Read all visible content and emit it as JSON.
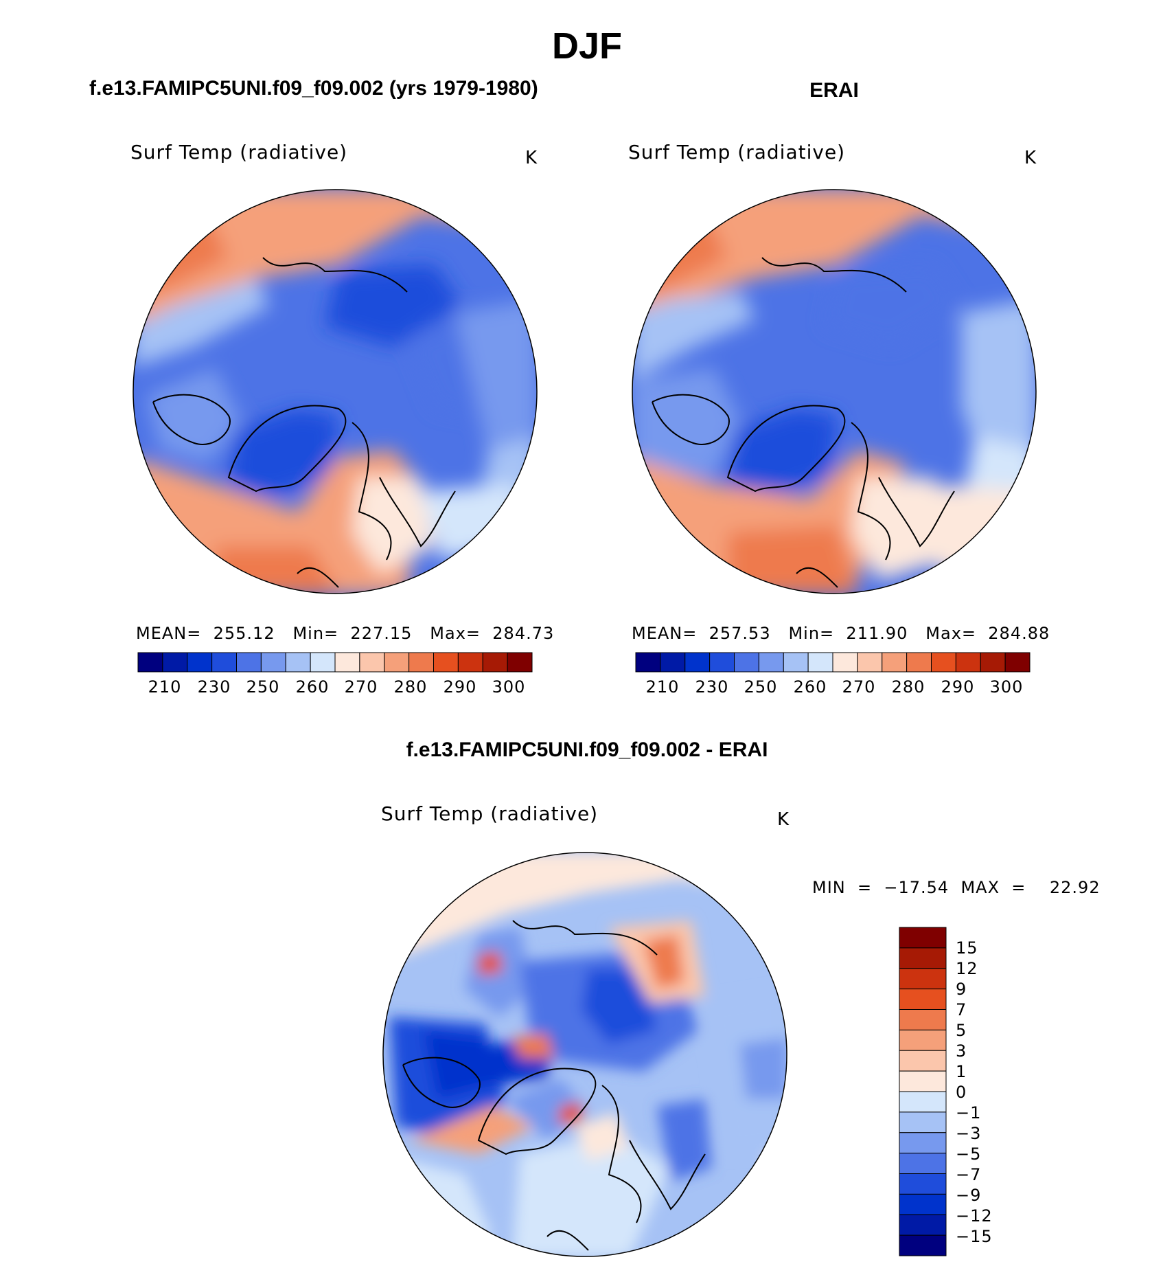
{
  "figure": {
    "title": "DJF",
    "colors": {
      "abs_scale": [
        "#00007f",
        "#001aa6",
        "#0033cc",
        "#1f4ddb",
        "#4d73e6",
        "#7799ee",
        "#a6c2f5",
        "#d4e6fb",
        "#fde8dc",
        "#fbc6ac",
        "#f5a07a",
        "#ee7a4d",
        "#e6501f",
        "#cc330f",
        "#a61a05",
        "#7f0000"
      ],
      "diff_scale": [
        "#00007f",
        "#001aa6",
        "#0033cc",
        "#1f4ddb",
        "#4d73e6",
        "#7799ee",
        "#a6c2f5",
        "#d4e6fb",
        "#fde8dc",
        "#fbc6ac",
        "#f5a07a",
        "#ee7a4d",
        "#e6501f",
        "#cc330f",
        "#a61a05",
        "#7f0000"
      ]
    }
  },
  "panels": [
    {
      "title": "f.e13.FAMIPC5UNI.f09_f09.002 (yrs 1979-1980)",
      "variable": "Surf  Temp  (radiative)",
      "units": "K",
      "stats": "MEAN=  255.12   Min=  227.15   Max=  284.73",
      "colorbar_ticks": [
        "210",
        "230",
        "250",
        "260",
        "270",
        "280",
        "290",
        "300"
      ]
    },
    {
      "title": "ERAI",
      "variable": "Surf  Temp  (radiative)",
      "units": "K",
      "stats": "MEAN=  257.53   Min=  211.90   Max=  284.88",
      "colorbar_ticks": [
        "210",
        "230",
        "250",
        "260",
        "270",
        "280",
        "290",
        "300"
      ]
    },
    {
      "title": "f.e13.FAMIPC5UNI.f09_f09.002 - ERAI",
      "variable": "Surf  Temp  (radiative)",
      "units": "K",
      "stats": "MIN  =  −17.54  MAX  =    22.92",
      "colorbar_ticks": [
        "15",
        "12",
        "9",
        "7",
        "5",
        "3",
        "1",
        "0",
        "−1",
        "−3",
        "−5",
        "−7",
        "−9",
        "−12",
        "−15"
      ]
    }
  ]
}
